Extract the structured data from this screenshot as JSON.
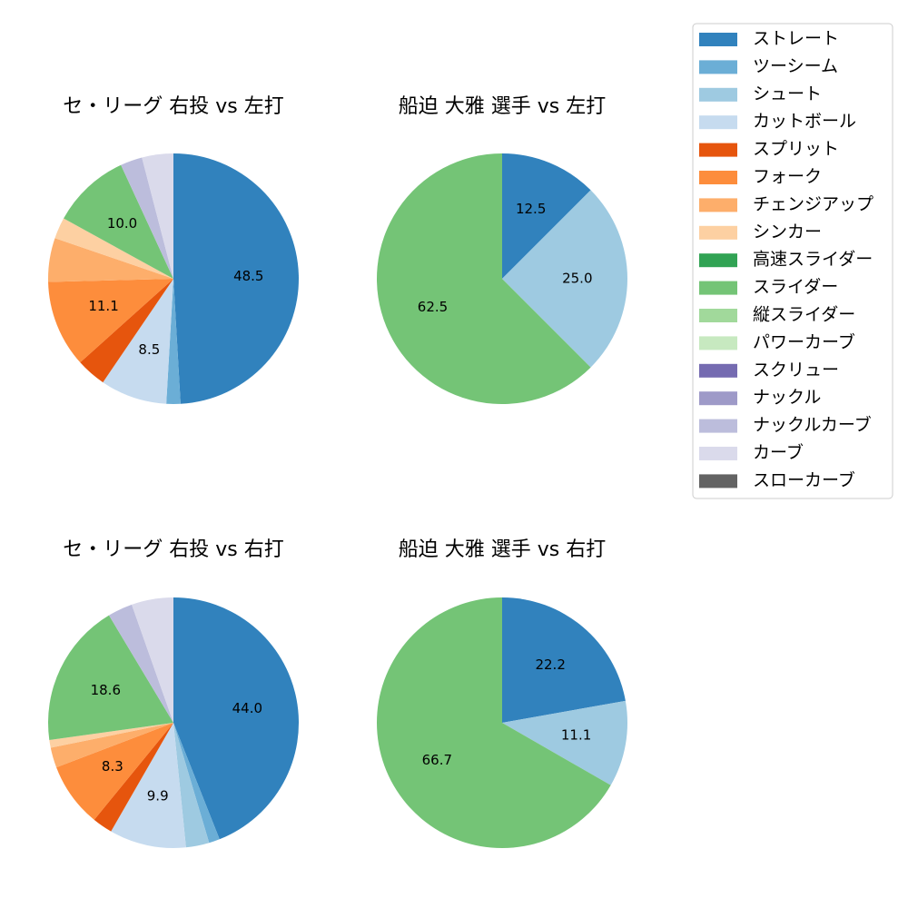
{
  "legend": {
    "items": [
      {
        "label": "ストレート",
        "color": "#3182bd"
      },
      {
        "label": "ツーシーム",
        "color": "#6baed6"
      },
      {
        "label": "シュート",
        "color": "#9ecae1"
      },
      {
        "label": "カットボール",
        "color": "#c6dbef"
      },
      {
        "label": "スプリット",
        "color": "#e6550d"
      },
      {
        "label": "フォーク",
        "color": "#fd8d3c"
      },
      {
        "label": "チェンジアップ",
        "color": "#fdae6b"
      },
      {
        "label": "シンカー",
        "color": "#fdd0a2"
      },
      {
        "label": "高速スライダー",
        "color": "#31a354"
      },
      {
        "label": "スライダー",
        "color": "#74c476"
      },
      {
        "label": "縦スライダー",
        "color": "#a1d99b"
      },
      {
        "label": "パワーカーブ",
        "color": "#c7e9c0"
      },
      {
        "label": "スクリュー",
        "color": "#756bb1"
      },
      {
        "label": "ナックル",
        "color": "#9e9ac8"
      },
      {
        "label": "ナックルカーブ",
        "color": "#bcbddc"
      },
      {
        "label": "カーブ",
        "color": "#dadaeb"
      },
      {
        "label": "スローカーブ",
        "color": "#636363"
      }
    ]
  },
  "chart_data": [
    {
      "type": "pie",
      "title": "セ・リーグ 右投 vs 左打",
      "slices": [
        {
          "label": "ストレート",
          "value": 48.5,
          "shown": "48.5"
        },
        {
          "label": "ツーシーム",
          "value": 1.8,
          "shown": ""
        },
        {
          "label": "シュート",
          "value": 0.0,
          "shown": ""
        },
        {
          "label": "カットボール",
          "value": 8.5,
          "shown": "8.5"
        },
        {
          "label": "スプリット",
          "value": 3.8,
          "shown": ""
        },
        {
          "label": "フォーク",
          "value": 11.1,
          "shown": "11.1"
        },
        {
          "label": "チェンジアップ",
          "value": 5.6,
          "shown": ""
        },
        {
          "label": "シンカー",
          "value": 2.7,
          "shown": ""
        },
        {
          "label": "スライダー",
          "value": 10.0,
          "shown": "10.0"
        },
        {
          "label": "ナックルカーブ",
          "value": 2.8,
          "shown": ""
        },
        {
          "label": "カーブ",
          "value": 4.0,
          "shown": ""
        }
      ]
    },
    {
      "type": "pie",
      "title": "船迫 大雅 選手 vs 左打",
      "slices": [
        {
          "label": "ストレート",
          "value": 12.5,
          "shown": "12.5"
        },
        {
          "label": "シュート",
          "value": 25.0,
          "shown": "25.0"
        },
        {
          "label": "スライダー",
          "value": 62.5,
          "shown": "62.5"
        }
      ]
    },
    {
      "type": "pie",
      "title": "セ・リーグ 右投 vs 右打",
      "slices": [
        {
          "label": "ストレート",
          "value": 44.0,
          "shown": "44.0"
        },
        {
          "label": "ツーシーム",
          "value": 1.4,
          "shown": ""
        },
        {
          "label": "シュート",
          "value": 3.0,
          "shown": ""
        },
        {
          "label": "カットボール",
          "value": 9.9,
          "shown": "9.9"
        },
        {
          "label": "スプリット",
          "value": 2.6,
          "shown": ""
        },
        {
          "label": "フォーク",
          "value": 8.3,
          "shown": "8.3"
        },
        {
          "label": "チェンジアップ",
          "value": 2.6,
          "shown": ""
        },
        {
          "label": "シンカー",
          "value": 1.0,
          "shown": ""
        },
        {
          "label": "スライダー",
          "value": 18.6,
          "shown": "18.6"
        },
        {
          "label": "ナックルカーブ",
          "value": 3.2,
          "shown": ""
        },
        {
          "label": "カーブ",
          "value": 5.4,
          "shown": ""
        }
      ]
    },
    {
      "type": "pie",
      "title": "船迫 大雅 選手 vs 右打",
      "slices": [
        {
          "label": "ストレート",
          "value": 22.2,
          "shown": "22.2"
        },
        {
          "label": "シュート",
          "value": 11.1,
          "shown": "11.1"
        },
        {
          "label": "スライダー",
          "value": 66.7,
          "shown": "66.7"
        }
      ]
    }
  ]
}
